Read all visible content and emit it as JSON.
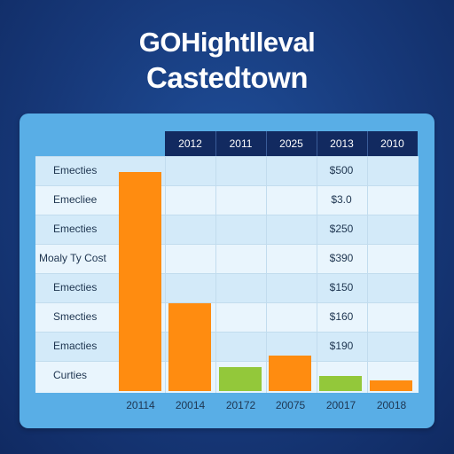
{
  "title": {
    "line1": "GOHightlleval",
    "line2": "Castedtown"
  },
  "chart_data": {
    "type": "bar",
    "column_headers": [
      "2012",
      "2011",
      "2025",
      "2013",
      "2010"
    ],
    "row_labels": [
      "Emecties",
      "Emecliee",
      "Emecties",
      "Moaly Ty Cost",
      "Emecties",
      "Smecties",
      "Emacties",
      "Curties"
    ],
    "cell_values": [
      "$500",
      "$3.0",
      "$250",
      "$390",
      "$150",
      "$160",
      "$190",
      ""
    ],
    "categories": [
      "20114",
      "20014",
      "20172",
      "20075",
      "20017",
      "20018"
    ],
    "values": [
      100,
      40,
      11,
      16,
      7,
      5
    ],
    "value_scale": "relative (0-100), axis not printed",
    "colors": [
      "#ff8c10",
      "#ff8c10",
      "#93c83a",
      "#ff8c10",
      "#93c83a",
      "#ff8c10"
    ]
  }
}
